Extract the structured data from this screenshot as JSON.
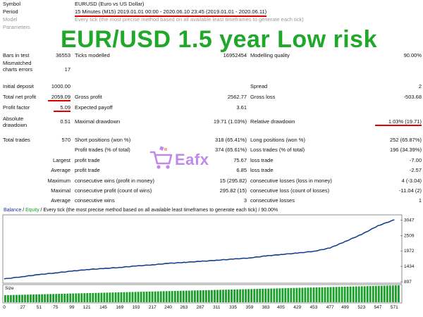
{
  "header": {
    "rows": [
      {
        "label": "Symbol",
        "value": "EURUSD (Euro vs US Dollar)",
        "grey": false
      },
      {
        "label": "Period",
        "value": "15 Minutes (M15) 2019.01.01 00:00 - 2020.06.10 23:45 (2019.01.01 - 2020.06.11)",
        "grey": false
      },
      {
        "label": "Model",
        "value": "Every tick (the most precise method based on all available least timeframes to generate each tick)",
        "grey": true
      },
      {
        "label": "Parameters",
        "value": "",
        "grey": true
      }
    ]
  },
  "banner": "EUR/USD  1.5 year Low risk",
  "stats": {
    "bars_in_test_label": "Bars in test",
    "bars_in_test": "36553",
    "ticks_modelled_label": "Ticks modelled",
    "ticks_modelled": "16952454",
    "modelling_quality_label": "Modelling quality",
    "modelling_quality": "90.00%",
    "mismatched_label_1": "Mismatched",
    "mismatched_label_2": "charts errors",
    "mismatched": "17",
    "initial_deposit_label": "Initial deposit",
    "initial_deposit": "1000.00",
    "spread_label": "Spread",
    "spread": "2",
    "total_net_profit_label": "Total net profit",
    "total_net_profit": "2059.09",
    "gross_profit_label": "Gross profit",
    "gross_profit": "2562.77",
    "gross_loss_label": "Gross loss",
    "gross_loss": "-503.68",
    "profit_factor_label": "Profit factor",
    "profit_factor": "5.09",
    "expected_payoff_label": "Expected payoff",
    "expected_payoff": "3.61",
    "absolute_dd_label_1": "Absolute",
    "absolute_dd_label_2": "drawdown",
    "absolute_dd": "0.51",
    "maximal_dd_label": "Maximal drawdown",
    "maximal_dd": "19.71 (1.03%)",
    "relative_dd_label": "Relative drawdown",
    "relative_dd": "1.03% (19.71)",
    "total_trades_label": "Total trades",
    "total_trades": "570",
    "short_pos_label": "Short positions (won %)",
    "short_pos": "318 (65.41%)",
    "long_pos_label": "Long positions (won %)",
    "long_pos": "252 (65.87%)",
    "profit_trades_label": "Profit trades (% of total)",
    "profit_trades": "374 (65.61%)",
    "loss_trades_label": "Loss trades (% of total)",
    "loss_trades": "196 (34.39%)",
    "largest_label": "Largest",
    "profit_trade_label": "profit trade",
    "largest_profit": "75.67",
    "loss_trade_label": "loss trade",
    "largest_loss": "-7.00",
    "average_label": "Average",
    "average_profit": "6.85",
    "average_loss": "-2.57",
    "maximum_label": "Maximum",
    "max_cons_wins_label": "consecutive wins (profit in money)",
    "max_cons_wins": "15 (295.82)",
    "max_cons_losses_label": "consecutive losses (loss in money)",
    "max_cons_losses": "4 (-3.04)",
    "maximal_label": "Maximal",
    "maximal_cons_profit_label": "consecutive profit (count of wins)",
    "maximal_cons_profit": "295.82 (15)",
    "maximal_cons_loss_label": "consecutive loss (count of losses)",
    "maximal_cons_loss": "-11.04 (2)",
    "average2_label": "Average",
    "avg_cons_wins_label": "consecutive wins",
    "avg_cons_wins": "3",
    "avg_cons_losses_label": "consecutive losses",
    "avg_cons_losses": "1"
  },
  "watermark": {
    "text": "Eafx",
    "icon": "shopping-cart-icon"
  },
  "chart_title": {
    "balance": "Balance",
    "sep": " / ",
    "equity": "Equity",
    "rest": " / Every tick (the most precise method based on all available least timeframes to generate each tick) / 90.00%"
  },
  "size_label": "Size",
  "chart_data": {
    "type": "line",
    "series": [
      {
        "name": "Balance"
      },
      {
        "name": "Equity"
      }
    ],
    "colors": {
      "balance": "#1b2fa8",
      "equity": "#1b9e2a",
      "size_bars": "#1b9e2a"
    },
    "x": [
      0,
      27,
      51,
      75,
      99,
      121,
      145,
      169,
      193,
      217,
      240,
      263,
      287,
      311,
      335,
      359,
      383,
      405,
      429,
      453,
      477,
      499,
      523,
      547,
      571
    ],
    "balance_values": [
      1000,
      1080,
      1150,
      1210,
      1270,
      1325,
      1360,
      1400,
      1450,
      1490,
      1540,
      1575,
      1610,
      1650,
      1690,
      1730,
      1800,
      1850,
      1900,
      1960,
      2080,
      2300,
      2550,
      2850,
      3059
    ],
    "y_ticks": [
      897,
      1434,
      1972,
      2509,
      3047
    ],
    "ylim": [
      897,
      3180
    ],
    "xlim": [
      0,
      580
    ]
  }
}
